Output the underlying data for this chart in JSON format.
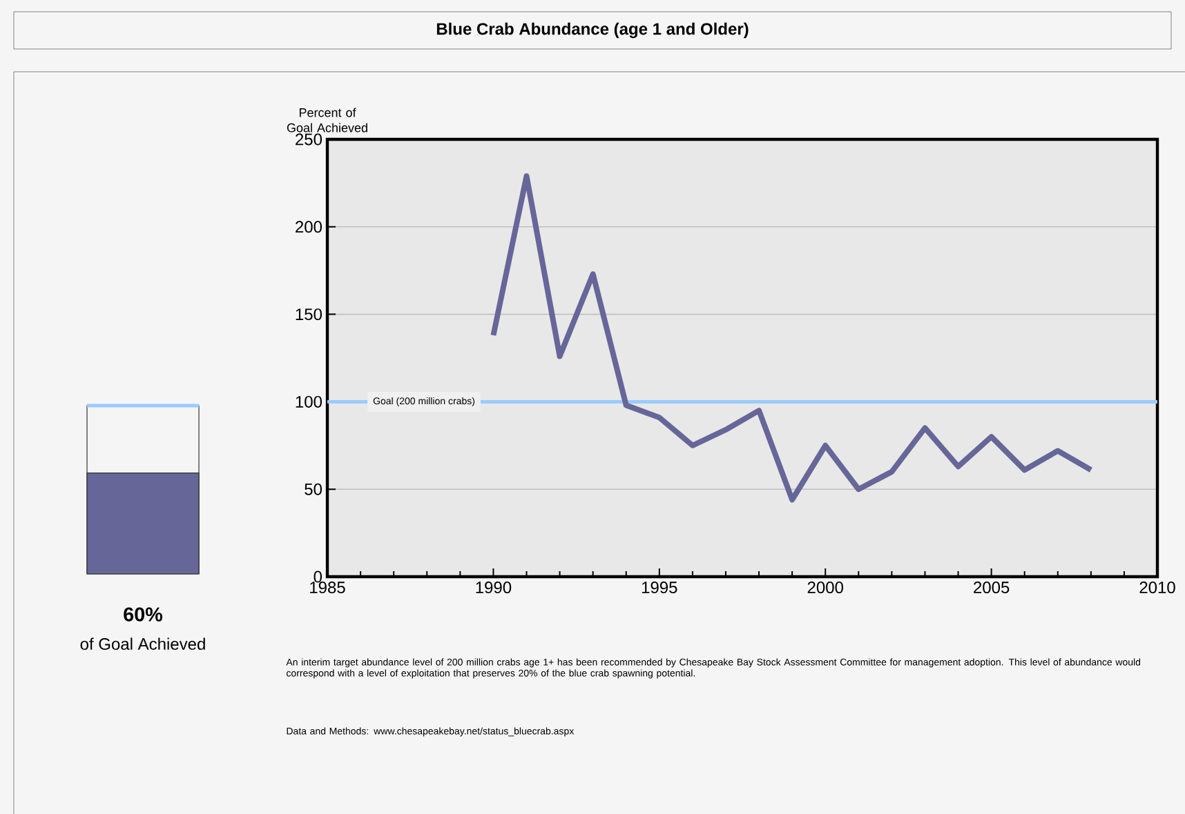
{
  "chart_data": [
    {
      "type": "line",
      "title": "Blue Crab Abundance (age 1 and Older)",
      "ylabel": "Percent of Goal Achieved",
      "x": [
        1990,
        1991,
        1992,
        1993,
        1994,
        1995,
        1996,
        1997,
        1998,
        1999,
        2000,
        2001,
        2002,
        2003,
        2004,
        2005,
        2006,
        2007,
        2008
      ],
      "series": [
        {
          "color": "#666699",
          "values": [
            138,
            229,
            126,
            173,
            98,
            91,
            75,
            84,
            95,
            44,
            75,
            50,
            60,
            85,
            63,
            80,
            61,
            72,
            61
          ]
        }
      ],
      "xlim": [
        1985,
        2010
      ],
      "xticks": [
        1985,
        1990,
        1995,
        2000,
        2005,
        2010
      ],
      "ylim": [
        0,
        250
      ],
      "yticks": [
        0,
        50,
        100,
        150,
        200,
        250
      ],
      "grid": "y",
      "marker": "none",
      "line_style": "solid",
      "ref_lines": [
        {
          "axis": "y",
          "value": 100,
          "label": "Goal (200 million crabs)",
          "color": "#99ccff"
        }
      ],
      "annotations": [
        "An interim target abundance level of 200 million crabs age 1+ has been recommended by Chesapeake Bay Stock Assessment Committee for management adoption. This level of abundance would correspond with a level of exploitation that preserves 20% of the blue crab spawning potential.",
        "Data and Methods: www.chesapeakebay.net/status_bluecrab.aspx"
      ]
    },
    {
      "type": "other",
      "categories": [
        null
      ],
      "values": [
        60
      ],
      "value_labels": [
        "60%"
      ],
      "color": "#666699",
      "annotations": [
        "of Goal Achieved"
      ]
    }
  ]
}
